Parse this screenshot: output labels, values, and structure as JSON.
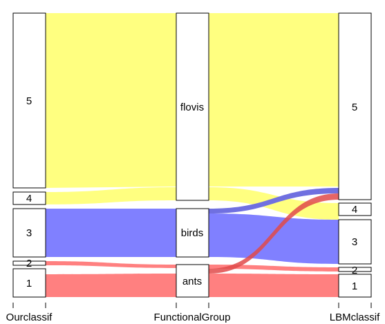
{
  "axes": [
    {
      "id": "ourclassif",
      "label": "Ourclassif",
      "categories": [
        {
          "id": "5",
          "label": "5"
        },
        {
          "id": "4",
          "label": "4"
        },
        {
          "id": "3",
          "label": "3"
        },
        {
          "id": "2",
          "label": "2"
        },
        {
          "id": "1",
          "label": "1"
        }
      ]
    },
    {
      "id": "functionalgroup",
      "label": "FunctionalGroup",
      "categories": [
        {
          "id": "flovis",
          "label": "flovis"
        },
        {
          "id": "birds",
          "label": "birds"
        },
        {
          "id": "ants",
          "label": "ants"
        }
      ]
    },
    {
      "id": "lbmclassif",
      "label": "LBMclassif",
      "categories": [
        {
          "id": "5",
          "label": "5"
        },
        {
          "id": "4",
          "label": "4"
        },
        {
          "id": "3",
          "label": "3"
        },
        {
          "id": "2",
          "label": "2"
        },
        {
          "id": "1",
          "label": "1"
        }
      ]
    }
  ],
  "group_colors": {
    "flovis": "#ffff80",
    "birds": "#8080ff",
    "ants": "#ff8080"
  },
  "highlight_colors": {
    "birds": "#7070e0",
    "ants": "#e04a4a"
  }
}
